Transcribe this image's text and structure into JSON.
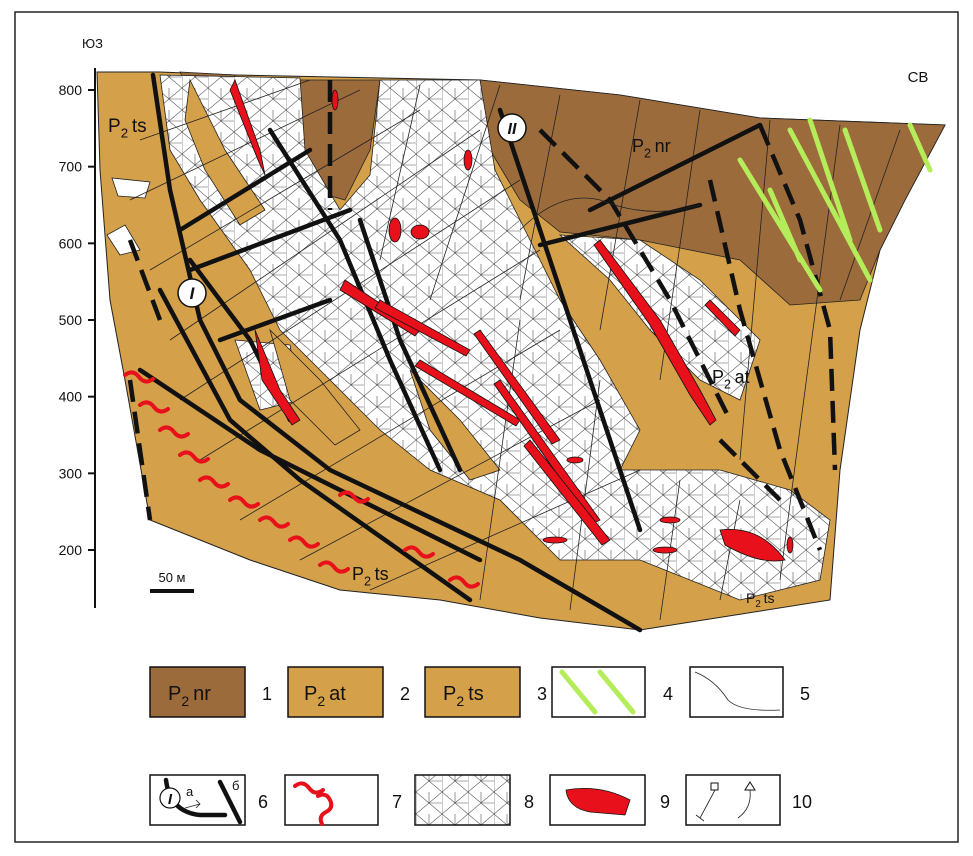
{
  "orientation": {
    "left": "ЮЗ",
    "right": "СВ"
  },
  "axis": {
    "ticks": [
      800,
      700,
      600,
      500,
      400,
      300,
      200
    ]
  },
  "scale_bar": "50 м",
  "map_labels": [
    {
      "base": "P",
      "sub": "2",
      "name": "ts"
    },
    {
      "base": "P",
      "sub": "2",
      "name": "nr"
    },
    {
      "base": "P",
      "sub": "2",
      "name": "at"
    },
    {
      "base": "P",
      "sub": "2",
      "name": "ts"
    },
    {
      "base": "P",
      "sub": "2",
      "name": "ts"
    }
  ],
  "fault_markers": [
    "I",
    "II"
  ],
  "legend": [
    {
      "number": "1",
      "swatch": {
        "base": "P",
        "sub": "2",
        "name": "nr"
      }
    },
    {
      "number": "2",
      "swatch": {
        "base": "P",
        "sub": "2",
        "name": "at"
      }
    },
    {
      "number": "3",
      "swatch": {
        "base": "P",
        "sub": "2",
        "name": "ts"
      }
    },
    {
      "number": "4"
    },
    {
      "number": "5"
    },
    {
      "number": "6",
      "marks": [
        "I",
        "а",
        "б"
      ]
    },
    {
      "number": "7"
    },
    {
      "number": "8"
    },
    {
      "number": "9"
    },
    {
      "number": "10"
    }
  ]
}
